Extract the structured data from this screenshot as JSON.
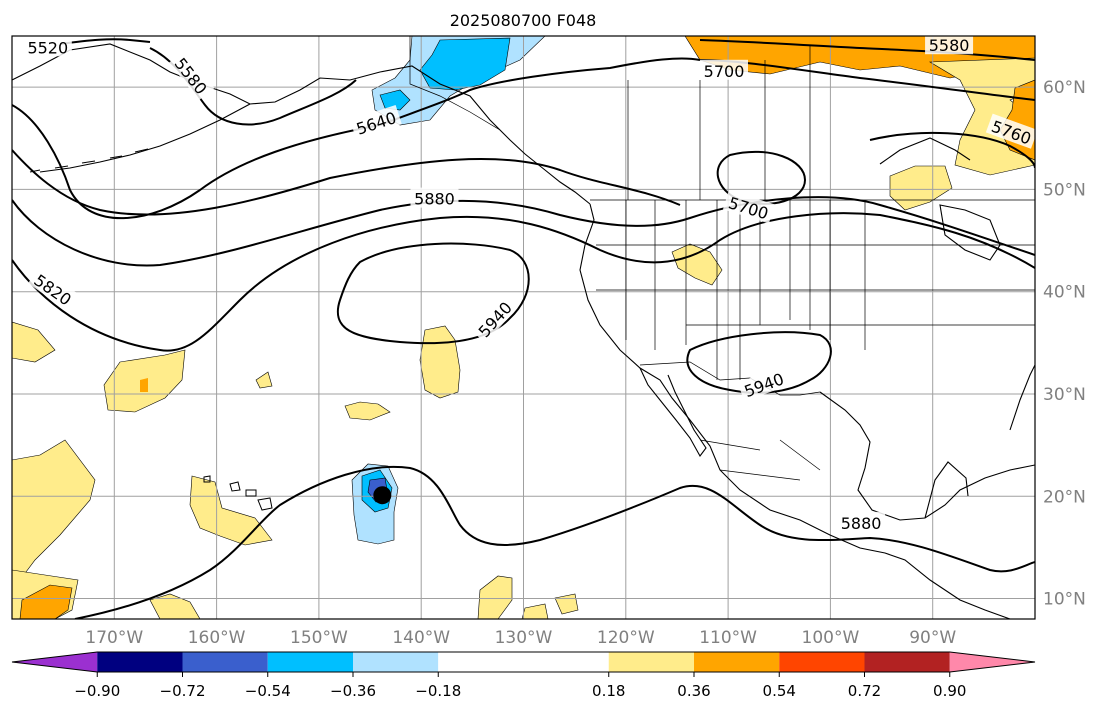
{
  "title": "2025080700 F048",
  "colors": {
    "coast": "#000000",
    "contour": "#000000",
    "grid": "#a0a0a0",
    "axis_label": "#808080",
    "storm_center": "#000000"
  },
  "map": {
    "lon_range": [
      -180,
      -80
    ],
    "lat_range": [
      8,
      65
    ],
    "lon_ticks": [
      {
        "value": -170,
        "label": "170°W"
      },
      {
        "value": -160,
        "label": "160°W"
      },
      {
        "value": -150,
        "label": "150°W"
      },
      {
        "value": -140,
        "label": "140°W"
      },
      {
        "value": -130,
        "label": "130°W"
      },
      {
        "value": -120,
        "label": "120°W"
      },
      {
        "value": -110,
        "label": "110°W"
      },
      {
        "value": -100,
        "label": "100°W"
      },
      {
        "value": -90,
        "label": "90°W"
      }
    ],
    "lat_ticks": [
      {
        "value": 10,
        "label": "10°N"
      },
      {
        "value": 20,
        "label": "20°N"
      },
      {
        "value": 30,
        "label": "30°N"
      },
      {
        "value": 40,
        "label": "40°N"
      },
      {
        "value": 50,
        "label": "50°N"
      },
      {
        "value": 60,
        "label": "60°N"
      }
    ],
    "contour_labels": [
      {
        "text": "5520",
        "lon": -176.5,
        "lat": 63.9,
        "rot": 0
      },
      {
        "text": "5580",
        "lon": -162.5,
        "lat": 61.1,
        "rot": 52
      },
      {
        "text": "5640",
        "lon": -144.4,
        "lat": 56.5,
        "rot": -18
      },
      {
        "text": "5700",
        "lon": -110.4,
        "lat": 61.6,
        "rot": 0
      },
      {
        "text": "5580",
        "lon": -88.4,
        "lat": 64.1,
        "rot": 0
      },
      {
        "text": "5760",
        "lon": -82.3,
        "lat": 55.6,
        "rot": 20
      },
      {
        "text": "5880",
        "lon": -138.7,
        "lat": 49.1,
        "rot": 0
      },
      {
        "text": "5700",
        "lon": -108.0,
        "lat": 48.2,
        "rot": 17
      },
      {
        "text": "5820",
        "lon": -176.0,
        "lat": 40.2,
        "rot": 35
      },
      {
        "text": "5940",
        "lon": -132.8,
        "lat": 37.3,
        "rot": -48
      },
      {
        "text": "5940",
        "lon": -106.5,
        "lat": 30.9,
        "rot": -20
      },
      {
        "text": "5880",
        "lon": -97.0,
        "lat": 17.4,
        "rot": 0
      }
    ],
    "storm_center": {
      "lon": -143.8,
      "lat": 20.1
    }
  },
  "colorbar": {
    "tick_labels": [
      "−0.90",
      "−0.72",
      "−0.54",
      "−0.36",
      "−0.18",
      "0.18",
      "0.36",
      "0.54",
      "0.72",
      "0.90"
    ],
    "segments": [
      {
        "color": "#9b30d0",
        "from": -1.08,
        "to": -0.9
      },
      {
        "color": "#000080",
        "from": -0.9,
        "to": -0.72
      },
      {
        "color": "#3a5fcd",
        "from": -0.72,
        "to": -0.54
      },
      {
        "color": "#00bfff",
        "from": -0.54,
        "to": -0.36
      },
      {
        "color": "#b0e2ff",
        "from": -0.36,
        "to": -0.18
      },
      {
        "color": "#ffffff",
        "from": -0.18,
        "to": 0.18
      },
      {
        "color": "#ffec8b",
        "from": 0.18,
        "to": 0.36
      },
      {
        "color": "#ffa500",
        "from": 0.36,
        "to": 0.54
      },
      {
        "color": "#ff4500",
        "from": 0.54,
        "to": 0.72
      },
      {
        "color": "#b22222",
        "from": 0.72,
        "to": 0.9
      },
      {
        "color": "#ff88aa",
        "from": 0.9,
        "to": 1.08
      }
    ]
  }
}
